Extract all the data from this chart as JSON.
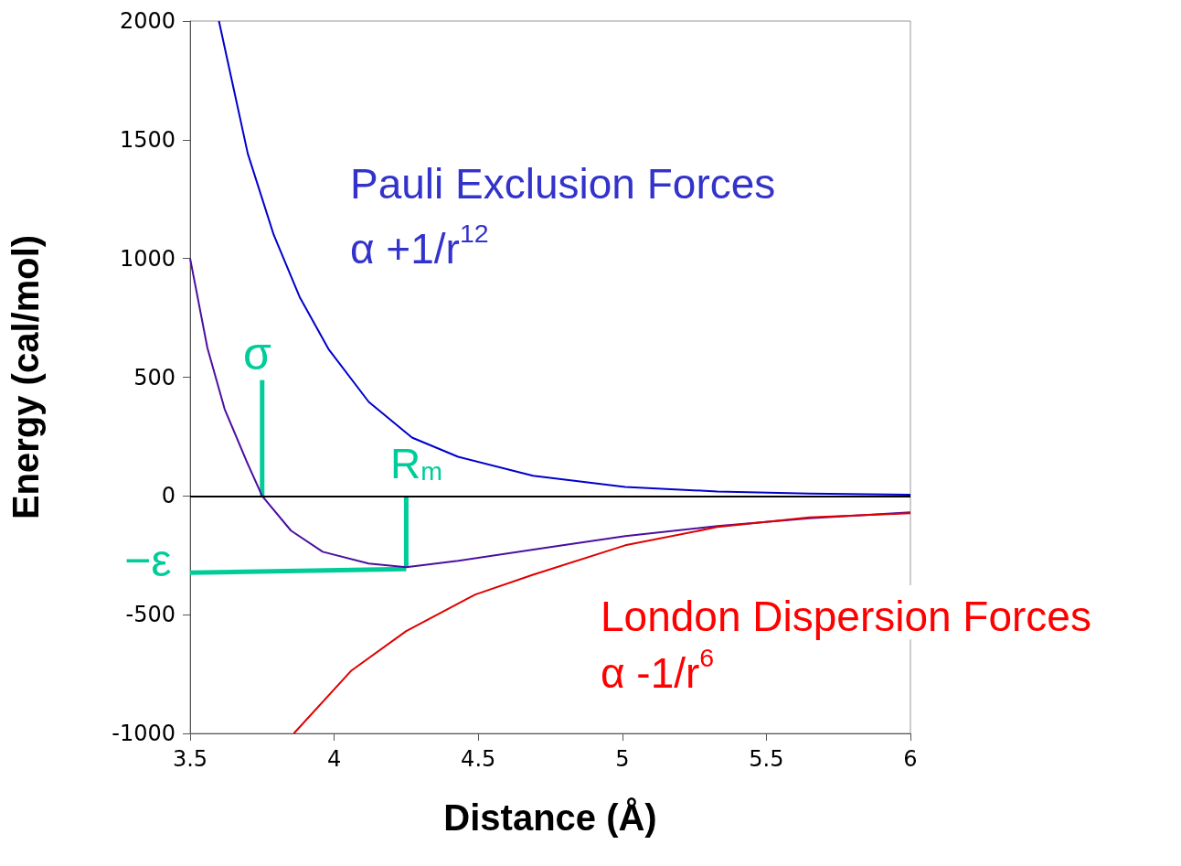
{
  "chart_data": {
    "type": "line",
    "xlabel": "Distance (Å)",
    "ylabel": "Energy (cal/mol)",
    "xlim": [
      3.5,
      6
    ],
    "xticks": [
      3.5,
      4,
      4.5,
      5,
      5.5,
      6
    ],
    "ylim": [
      -1000,
      2000
    ],
    "yticks": [
      -1000,
      -500,
      0,
      500,
      1000,
      1500,
      2000
    ],
    "grid": false,
    "marker": "none",
    "line_style": "solid",
    "series": [
      {
        "color": "#0000cc",
        "x": [
          3.6,
          3.7,
          3.79,
          3.88,
          3.98,
          4.12,
          4.27,
          4.43,
          4.69,
          5.01,
          5.33,
          5.65,
          6
        ],
        "values": [
          2000,
          1442,
          1100,
          838,
          619,
          396,
          246,
          165,
          85,
          38,
          19,
          10,
          5
        ]
      },
      {
        "color": "#4b0fa0",
        "x": [
          3.5,
          3.56,
          3.62,
          3.7,
          3.75,
          3.85,
          3.96,
          4.12,
          4.25,
          4.43,
          4.75,
          5.01,
          5.33,
          5.65,
          6
        ],
        "values": [
          1000,
          623,
          365,
          135,
          0,
          -146,
          -235,
          -285,
          -300,
          -273,
          -215,
          -169,
          -127,
          -94,
          -69
        ]
      },
      {
        "color": "#e00000",
        "x": [
          3.86,
          4.06,
          4.25,
          4.49,
          4.69,
          5.01,
          5.33,
          5.65,
          6
        ],
        "values": [
          -1000,
          -735,
          -569,
          -415,
          -332,
          -208,
          -131,
          -90,
          -73
        ]
      },
      {
        "color": "#00cc99",
        "x": [
          3.75,
          3.75
        ],
        "values": [
          0,
          488
        ]
      },
      {
        "color": "#00cc99",
        "x": [
          4.25,
          4.25
        ],
        "values": [
          0,
          -300
        ]
      },
      {
        "color": "#00cc99",
        "x": [
          3.5,
          4.25
        ],
        "values": [
          -323,
          -308
        ]
      }
    ],
    "ref_lines": [
      {
        "axis": "y",
        "value": 0,
        "color": "#000000"
      }
    ],
    "annotations": [
      "Pauli Exclusion Forces",
      "α +1/r$^{12}$",
      "London Dispersion Forces",
      "α -1/r$^{6}$",
      "−ε",
      "σ",
      "R$_{m}$"
    ]
  }
}
